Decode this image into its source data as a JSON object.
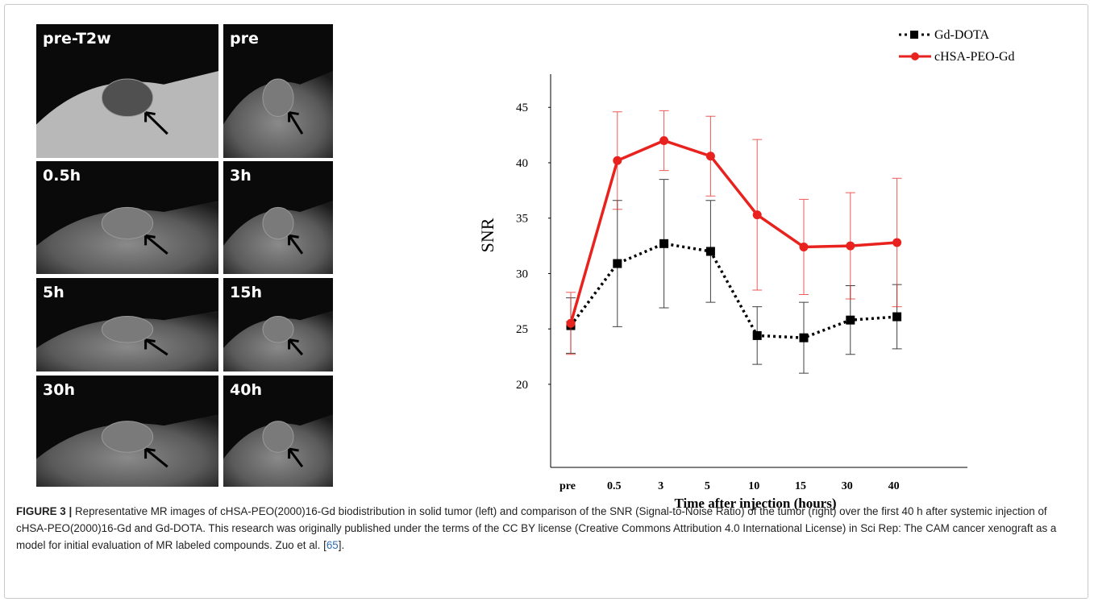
{
  "panels": [
    "pre-T2w",
    "pre",
    "0.5h",
    "3h",
    "5h",
    "15h",
    "30h",
    "40h"
  ],
  "chart_data": {
    "type": "line",
    "xlabel": "Time after injection (hours)",
    "ylabel": "SNR",
    "categories": [
      "pre",
      "0.5",
      "3",
      "5",
      "10",
      "15",
      "30",
      "40"
    ],
    "series": [
      {
        "name": "Gd-DOTA",
        "color": "#000000",
        "line_style": "dotted",
        "marker": "square",
        "values": [
          25.3,
          30.9,
          32.7,
          32.0,
          24.4,
          24.2,
          25.8,
          26.1
        ],
        "errors": [
          2.5,
          5.7,
          5.8,
          4.6,
          2.6,
          3.2,
          3.1,
          2.9
        ]
      },
      {
        "name": "cHSA-PEO-Gd",
        "color": "#e8231f",
        "line_style": "solid",
        "marker": "circle",
        "values": [
          25.5,
          40.2,
          42.0,
          40.6,
          35.3,
          32.4,
          32.5,
          32.8
        ],
        "errors": [
          2.8,
          4.4,
          2.7,
          3.6,
          6.8,
          4.3,
          4.8,
          5.8
        ]
      }
    ],
    "ylim": [
      12.5,
      48
    ],
    "yticks": [
      20,
      25,
      30,
      35,
      40,
      45
    ],
    "legend": "top-right"
  },
  "caption": {
    "label": "FIGURE 3 |",
    "text": "Representative MR images of cHSA-PEO(2000)16-Gd biodistribution in solid tumor (left) and comparison of the SNR (Signal-to-Noise Ratio) of the tumor (right) over the first 40 h after systemic injection of cHSA-PEO(2000)16-Gd and Gd-DOTA. This research was originally published under the terms of the CC BY license (Creative Commons Attribution 4.0 International License) in Sci Rep: The CAM cancer xenograft as a model for initial evaluation of MR labeled compounds. Zuo et al. [",
    "ref": "65",
    "end": "]."
  }
}
